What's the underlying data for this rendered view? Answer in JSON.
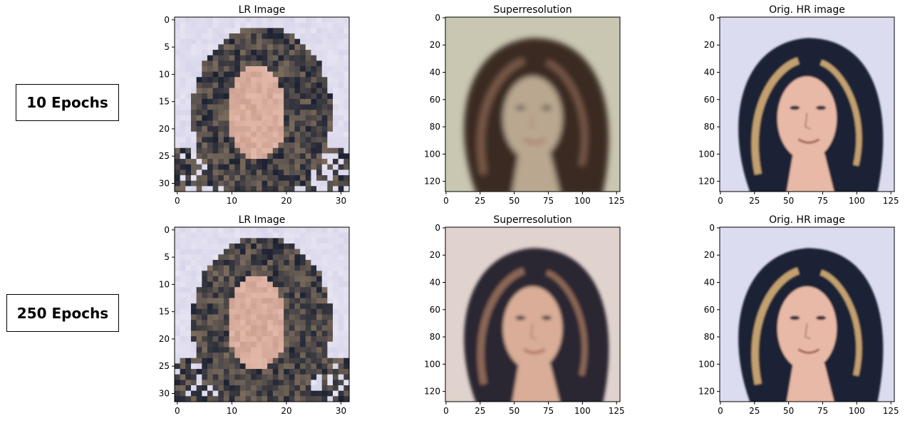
{
  "rows": [
    {
      "label": "10 Epochs",
      "panels": [
        {
          "title": "LR Image",
          "kind": "lr",
          "variant": 0,
          "yticks": [
            "0",
            "5",
            "10",
            "15",
            "20",
            "25",
            "30"
          ],
          "xticks": [
            "0",
            "10",
            "20",
            "30"
          ]
        },
        {
          "title": "Superresolution",
          "kind": "sr",
          "variant": 0,
          "yticks": [
            "0",
            "20",
            "40",
            "60",
            "80",
            "100",
            "120"
          ],
          "xticks": [
            "0",
            "25",
            "50",
            "75",
            "100",
            "125"
          ]
        },
        {
          "title": "Orig. HR image",
          "kind": "hr",
          "variant": 0,
          "yticks": [
            "0",
            "20",
            "40",
            "60",
            "80",
            "100",
            "120"
          ],
          "xticks": [
            "0",
            "25",
            "50",
            "75",
            "100",
            "125"
          ]
        }
      ]
    },
    {
      "label": "250 Epochs",
      "panels": [
        {
          "title": "LR Image",
          "kind": "lr",
          "variant": 0,
          "yticks": [
            "0",
            "5",
            "10",
            "15",
            "20",
            "25",
            "30"
          ],
          "xticks": [
            "0",
            "10",
            "20",
            "30"
          ]
        },
        {
          "title": "Superresolution",
          "kind": "sr",
          "variant": 1,
          "yticks": [
            "0",
            "20",
            "40",
            "60",
            "80",
            "100",
            "120"
          ],
          "xticks": [
            "0",
            "25",
            "50",
            "75",
            "100",
            "125"
          ]
        },
        {
          "title": "Orig. HR image",
          "kind": "hr",
          "variant": 0,
          "yticks": [
            "0",
            "20",
            "40",
            "60",
            "80",
            "100",
            "120"
          ],
          "xticks": [
            "0",
            "25",
            "50",
            "75",
            "100",
            "125"
          ]
        }
      ]
    }
  ],
  "colors": {
    "background": "#d8d6ea",
    "hair": "#1c2233",
    "hair_brown": "#5a3a2a",
    "skin": "#e2b8a8",
    "skin_shadow": "#b98a7a",
    "highlight": "#c9a77d"
  }
}
